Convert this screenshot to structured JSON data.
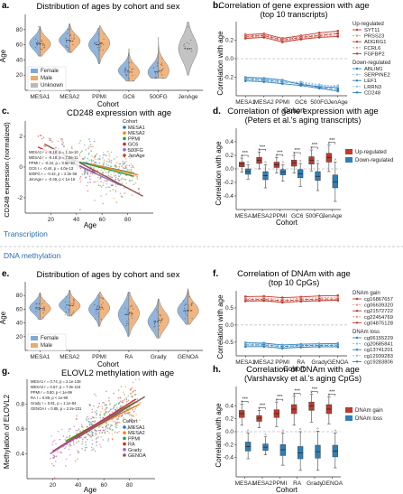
{
  "colors": {
    "female": "#7fa8d6",
    "male": "#f0a868",
    "unknown": "#b8b8b8",
    "up_solid": "#c0392b",
    "up_light": "#e8928a",
    "down_solid": "#2e7fb8",
    "down_light": "#8fc0e3",
    "mesa1": "#1f77b4",
    "mesa2": "#ff7f0e",
    "ppmi": "#2ca02c",
    "gc6": "#d62728",
    "fg500": "#9467bd",
    "jenage": "#8c564b",
    "ra": "#d62728",
    "grady": "#9467bd",
    "genoa": "#8c564b",
    "section_text": "#2a6db5",
    "axis": "#333333",
    "grid": "#999999"
  },
  "sections": {
    "transcription": "Transcription",
    "dna_methylation": "DNA methylation"
  },
  "chart_data": [
    {
      "id": "a",
      "panel_label": "a.",
      "type": "violin",
      "title": "Distribution of ages by cohort and sex",
      "xlabel": "Cohort",
      "ylabel": "Age",
      "ylim": [
        0,
        100
      ],
      "yticks": [
        20,
        40,
        60,
        80
      ],
      "categories": [
        "MESA1",
        "MESA2",
        "PPMI",
        "GC6",
        "500FG",
        "JenAge"
      ],
      "legend": [
        "Female",
        "Male",
        "Unknown"
      ],
      "legend_position": "bottom-left",
      "groups": [
        {
          "cohort": "MESA1",
          "female": {
            "median": 62,
            "min": 45,
            "max": 84
          },
          "male": {
            "median": 61,
            "min": 45,
            "max": 84
          }
        },
        {
          "cohort": "MESA2",
          "female": {
            "median": 66,
            "min": 50,
            "max": 88
          },
          "male": {
            "median": 65,
            "min": 50,
            "max": 88
          }
        },
        {
          "cohort": "PPMI",
          "female": {
            "median": 60,
            "min": 35,
            "max": 82
          },
          "male": {
            "median": 62,
            "min": 35,
            "max": 85
          }
        },
        {
          "cohort": "GC6",
          "female": {
            "median": 26,
            "min": 12,
            "max": 50
          },
          "male": {
            "median": 24,
            "min": 12,
            "max": 55
          }
        },
        {
          "cohort": "500FG",
          "female": {
            "median": 24,
            "min": 16,
            "max": 60
          },
          "male": {
            "median": 26,
            "min": 16,
            "max": 70
          }
        },
        {
          "cohort": "JenAge",
          "unknown": {
            "median": 55,
            "min": 20,
            "max": 90
          }
        }
      ]
    },
    {
      "id": "b",
      "panel_label": "b.",
      "type": "line",
      "title": "Correlation of gene expression with age",
      "subtitle": "(top 10 transcripts)",
      "xlabel": "Cohort",
      "ylabel": "Correlation with age",
      "ylim": [
        -0.4,
        0.4
      ],
      "yticks": [
        -0.2,
        0.0,
        0.2
      ],
      "ytick_labels": [
        "-0.2",
        "0.0",
        "0.2"
      ],
      "categories": [
        "MESA1",
        "MESA2",
        "PPMI",
        "GC6",
        "500FG",
        "JenAge"
      ],
      "legend_groups": [
        {
          "title": "Up-regulated",
          "items": [
            "SYT11",
            "PRSS23",
            "ADGRG1",
            "FCRL6",
            "FGFBP2"
          ]
        },
        {
          "title": "Down-regulated",
          "items": [
            "ABLIM1",
            "SERPINE2",
            "LEF1",
            "LRRN3",
            "CD248"
          ]
        }
      ],
      "series": [
        {
          "name": "SYT11",
          "group": "up",
          "values": [
            0.26,
            0.27,
            0.22,
            0.25,
            0.28,
            0.3
          ]
        },
        {
          "name": "PRSS23",
          "group": "up",
          "values": [
            0.25,
            0.26,
            0.21,
            0.24,
            0.26,
            0.28
          ]
        },
        {
          "name": "ADGRG1",
          "group": "up",
          "values": [
            0.24,
            0.25,
            0.2,
            0.23,
            0.25,
            0.27
          ]
        },
        {
          "name": "FCRL6",
          "group": "up",
          "values": [
            0.23,
            0.24,
            0.19,
            0.22,
            0.24,
            0.25
          ]
        },
        {
          "name": "FGFBP2",
          "group": "up",
          "values": [
            0.22,
            0.23,
            0.18,
            0.21,
            0.23,
            0.24
          ]
        },
        {
          "name": "ABLIM1",
          "group": "down",
          "values": [
            -0.2,
            -0.21,
            -0.23,
            -0.28,
            -0.3,
            -0.31
          ]
        },
        {
          "name": "SERPINE2",
          "group": "down",
          "values": [
            -0.21,
            -0.22,
            -0.24,
            -0.26,
            -0.29,
            -0.29
          ]
        },
        {
          "name": "LEF1",
          "group": "down",
          "values": [
            -0.22,
            -0.23,
            -0.25,
            -0.27,
            -0.31,
            -0.33
          ]
        },
        {
          "name": "LRRN3",
          "group": "down",
          "values": [
            -0.23,
            -0.24,
            -0.26,
            -0.25,
            -0.28,
            -0.3
          ]
        },
        {
          "name": "CD248",
          "group": "down",
          "values": [
            -0.24,
            -0.25,
            -0.27,
            -0.29,
            -0.32,
            -0.35
          ]
        }
      ]
    },
    {
      "id": "c",
      "panel_label": "c.",
      "type": "scatter",
      "title": "CD248 expression with age",
      "xlabel": "Age",
      "ylabel": "CD248 expression (normalized)",
      "xlim": [
        0,
        100
      ],
      "ylim": [
        -3,
        3
      ],
      "xticks": [
        20,
        40,
        60,
        80
      ],
      "yticks": [
        -2,
        0,
        2
      ],
      "legend_title": "Cohort",
      "legend": [
        "MESA1",
        "MESA2",
        "PPMI",
        "GC6",
        "500FG",
        "JenAge"
      ],
      "stats": [
        "MESA1 r = -0.18, p = 1.1e-10",
        "MESA2 r = -0.18, p = 7.0e-11",
        "PPMI r = -0.24, p = 3.5e-10",
        "GC6 r = -0.44, p = 4.0e-13",
        "500FG r = -0.42, p = 2.2e-08",
        "JenAge r = -0.48, p < 1e-16"
      ],
      "trend_lines": [
        {
          "cohort": "MESA1",
          "x": [
            45,
            85
          ],
          "y": [
            0.3,
            -0.4
          ]
        },
        {
          "cohort": "MESA2",
          "x": [
            50,
            88
          ],
          "y": [
            0.2,
            -0.5
          ]
        },
        {
          "cohort": "PPMI",
          "x": [
            30,
            85
          ],
          "y": [
            0.6,
            -0.6
          ]
        },
        {
          "cohort": "GC6",
          "x": [
            10,
            55
          ],
          "y": [
            1.3,
            -0.4
          ]
        },
        {
          "cohort": "500FG",
          "x": [
            18,
            75
          ],
          "y": [
            1.0,
            -1.2
          ]
        },
        {
          "cohort": "JenAge",
          "x": [
            15,
            92
          ],
          "y": [
            1.5,
            -1.9
          ]
        }
      ]
    },
    {
      "id": "d",
      "panel_label": "d.",
      "type": "box",
      "title": "Correlation of gene expression with age",
      "subtitle": "(Peters et al.'s aging transcripts)",
      "xlabel": "Cohort",
      "ylabel": "Correlation with age",
      "ylim": [
        -0.6,
        0.6
      ],
      "yticks": [
        -0.4,
        -0.2,
        0.0,
        0.2,
        0.4
      ],
      "ytick_labels": [
        "-0.4",
        "-0.2",
        "0.0",
        "0.2",
        "0.4"
      ],
      "categories": [
        "MESA1",
        "MESA2",
        "PPMI",
        "GC6",
        "500FG",
        "JenAge"
      ],
      "legend": [
        "Up-regulated",
        "Down-regulated"
      ],
      "significance": "***",
      "up": [
        {
          "q1": 0.03,
          "median": 0.07,
          "q3": 0.1,
          "low": -0.05,
          "high": 0.16
        },
        {
          "q1": 0.08,
          "median": 0.13,
          "q3": 0.17,
          "low": 0.0,
          "high": 0.25
        },
        {
          "q1": 0.02,
          "median": 0.06,
          "q3": 0.1,
          "low": -0.06,
          "high": 0.17
        },
        {
          "q1": 0.04,
          "median": 0.09,
          "q3": 0.13,
          "low": -0.06,
          "high": 0.2
        },
        {
          "q1": 0.07,
          "median": 0.13,
          "q3": 0.18,
          "low": -0.03,
          "high": 0.28
        },
        {
          "q1": 0.1,
          "median": 0.17,
          "q3": 0.23,
          "low": -0.04,
          "high": 0.35
        }
      ],
      "down": [
        {
          "q1": -0.08,
          "median": -0.04,
          "q3": 0.0,
          "low": -0.15,
          "high": 0.06
        },
        {
          "q1": -0.16,
          "median": -0.1,
          "q3": -0.04,
          "low": -0.28,
          "high": 0.06
        },
        {
          "q1": -0.09,
          "median": -0.05,
          "q3": -0.01,
          "low": -0.18,
          "high": 0.06
        },
        {
          "q1": -0.13,
          "median": -0.07,
          "q3": -0.01,
          "low": -0.26,
          "high": 0.08
        },
        {
          "q1": -0.17,
          "median": -0.11,
          "q3": -0.04,
          "low": -0.32,
          "high": 0.08
        },
        {
          "q1": -0.28,
          "median": -0.19,
          "q3": -0.09,
          "low": -0.48,
          "high": 0.1
        }
      ]
    },
    {
      "id": "e",
      "panel_label": "e.",
      "type": "violin",
      "title": "Distribution of ages by cohort and sex",
      "xlabel": "Cohort",
      "ylabel": "Age",
      "ylim": [
        0,
        100
      ],
      "yticks": [
        20,
        40,
        60,
        80
      ],
      "categories": [
        "MESA1",
        "MESA2",
        "PPMI",
        "RA",
        "Grady",
        "GENOA"
      ],
      "legend": [
        "Female",
        "Male"
      ],
      "legend_position": "bottom-left",
      "groups": [
        {
          "cohort": "MESA1",
          "female": {
            "median": 62,
            "min": 45,
            "max": 84
          },
          "male": {
            "median": 61,
            "min": 45,
            "max": 84
          }
        },
        {
          "cohort": "MESA2",
          "female": {
            "median": 66,
            "min": 50,
            "max": 88
          },
          "male": {
            "median": 65,
            "min": 50,
            "max": 88
          }
        },
        {
          "cohort": "PPMI",
          "female": {
            "median": 60,
            "min": 35,
            "max": 82
          },
          "male": {
            "median": 62,
            "min": 35,
            "max": 85
          }
        },
        {
          "cohort": "RA",
          "female": {
            "median": 52,
            "min": 20,
            "max": 85
          },
          "male": {
            "median": 54,
            "min": 22,
            "max": 85
          }
        },
        {
          "cohort": "Grady",
          "female": {
            "median": 42,
            "min": 18,
            "max": 75
          },
          "male": {
            "median": 44,
            "min": 18,
            "max": 75
          }
        },
        {
          "cohort": "GENOA",
          "female": {
            "median": 58,
            "min": 38,
            "max": 90
          },
          "male": {
            "median": 58,
            "min": 38,
            "max": 88
          }
        }
      ]
    },
    {
      "id": "f",
      "panel_label": "f.",
      "type": "line",
      "title": "Correlation of DNAm with age",
      "subtitle": "(top 10 CpGs)",
      "xlabel": "Cohort",
      "ylabel": "Correlation with age",
      "ylim": [
        -0.9,
        1.0
      ],
      "yticks": [
        -0.5,
        0.0,
        0.5
      ],
      "ytick_labels": [
        "-0.5",
        "0.0",
        "0.5"
      ],
      "categories": [
        "MESA1",
        "MESA2",
        "PPMI",
        "RA",
        "Grady",
        "GENOA"
      ],
      "legend_groups": [
        {
          "title": "DNAm gain",
          "items": [
            "cg16867657",
            "cg06639320",
            "cg21572722",
            "cg22454769",
            "cg04875128"
          ]
        },
        {
          "title": "DNAm loss",
          "items": [
            "cg06155229",
            "cg20685841",
            "cg13741201",
            "cg12939283",
            "cg19283806"
          ]
        }
      ],
      "series": [
        {
          "name": "cg16867657",
          "group": "up",
          "values": [
            0.83,
            0.84,
            0.8,
            0.82,
            0.85,
            0.86
          ]
        },
        {
          "name": "cg06639320",
          "group": "up",
          "values": [
            0.78,
            0.79,
            0.75,
            0.78,
            0.8,
            0.81
          ]
        },
        {
          "name": "cg21572722",
          "group": "up",
          "values": [
            0.74,
            0.75,
            0.71,
            0.74,
            0.76,
            0.76
          ]
        },
        {
          "name": "cg22454769",
          "group": "up",
          "values": [
            0.72,
            0.73,
            0.68,
            0.71,
            0.73,
            0.74
          ]
        },
        {
          "name": "cg04875128",
          "group": "up",
          "values": [
            0.7,
            0.71,
            0.66,
            0.69,
            0.71,
            0.72
          ]
        },
        {
          "name": "cg06155229",
          "group": "down",
          "values": [
            -0.52,
            -0.53,
            -0.58,
            -0.56,
            -0.55,
            -0.54
          ]
        },
        {
          "name": "cg20685841",
          "group": "down",
          "values": [
            -0.55,
            -0.56,
            -0.6,
            -0.58,
            -0.57,
            -0.57
          ]
        },
        {
          "name": "cg13741201",
          "group": "down",
          "values": [
            -0.58,
            -0.58,
            -0.63,
            -0.6,
            -0.6,
            -0.59
          ]
        },
        {
          "name": "cg12939283",
          "group": "down",
          "values": [
            -0.6,
            -0.61,
            -0.66,
            -0.62,
            -0.62,
            -0.62
          ]
        },
        {
          "name": "cg19283806",
          "group": "down",
          "values": [
            -0.63,
            -0.63,
            -0.68,
            -0.65,
            -0.64,
            -0.64
          ]
        }
      ]
    },
    {
      "id": "g",
      "panel_label": "g.",
      "type": "scatter",
      "title": "ELOVL2 methylation with age",
      "xlabel": "Age",
      "ylabel": "Methylation of ELOVL2",
      "xlim": [
        0,
        100
      ],
      "ylim": [
        0.2,
        1.0
      ],
      "xticks": [
        20,
        40,
        60,
        80
      ],
      "yticks": [
        0.4,
        0.6,
        0.8
      ],
      "legend_title": "Cohort",
      "legend": [
        "MESA1",
        "MESA2",
        "PPMI",
        "RA",
        "Grady",
        "GENOA"
      ],
      "stats": [
        "MESA1 r = 0.74, p = 2.1e-138",
        "MESA2 r = 0.67, p = 7.0e-116",
        "PPMI r = 0.80, p < 1e-99",
        "RA r = 0.88, p < 1e-99",
        "Grady r = 0.81, p = 1.1e-84",
        "GENOA r = 0.85, p = 2.2e-231"
      ],
      "trend_lines": [
        {
          "cohort": "MESA1",
          "x": [
            45,
            84
          ],
          "y": [
            0.58,
            0.78
          ]
        },
        {
          "cohort": "MESA2",
          "x": [
            50,
            88
          ],
          "y": [
            0.6,
            0.8
          ]
        },
        {
          "cohort": "PPMI",
          "x": [
            30,
            85
          ],
          "y": [
            0.5,
            0.82
          ]
        },
        {
          "cohort": "RA",
          "x": [
            20,
            85
          ],
          "y": [
            0.42,
            0.84
          ]
        },
        {
          "cohort": "Grady",
          "x": [
            18,
            75
          ],
          "y": [
            0.4,
            0.76
          ]
        },
        {
          "cohort": "GENOA",
          "x": [
            38,
            92
          ],
          "y": [
            0.52,
            0.86
          ]
        }
      ]
    },
    {
      "id": "h",
      "panel_label": "h.",
      "type": "box",
      "title": "Correlation of DNAm with age",
      "subtitle": "(Varshavsky et al.'s aging CpGs)",
      "xlabel": "Cohort",
      "ylabel": "Correlation with age",
      "ylim": [
        -0.7,
        0.7
      ],
      "yticks": [
        -0.4,
        -0.2,
        0.0,
        0.2,
        0.4
      ],
      "ytick_labels": [
        "-0.4",
        "-0.2",
        "0.0",
        "0.2",
        "0.4"
      ],
      "categories": [
        "MESA1",
        "MESA2",
        "PPMI",
        "RA",
        "Grady",
        "GENOA"
      ],
      "legend": [
        "DNAm gain",
        "DNAm loss"
      ],
      "significance": "***",
      "up": [
        {
          "q1": 0.22,
          "median": 0.28,
          "q3": 0.33,
          "low": 0.1,
          "high": 0.43
        },
        {
          "q1": 0.16,
          "median": 0.21,
          "q3": 0.25,
          "low": 0.06,
          "high": 0.33
        },
        {
          "q1": 0.22,
          "median": 0.28,
          "q3": 0.34,
          "low": 0.08,
          "high": 0.46
        },
        {
          "q1": 0.28,
          "median": 0.35,
          "q3": 0.42,
          "low": 0.1,
          "high": 0.55
        },
        {
          "q1": 0.33,
          "median": 0.4,
          "q3": 0.46,
          "low": 0.15,
          "high": 0.58
        },
        {
          "q1": 0.28,
          "median": 0.35,
          "q3": 0.42,
          "low": 0.12,
          "high": 0.54
        }
      ],
      "down": [
        {
          "q1": -0.3,
          "median": -0.23,
          "q3": -0.16,
          "low": -0.42,
          "high": -0.02
        },
        {
          "q1": -0.29,
          "median": -0.24,
          "q3": -0.19,
          "low": -0.36,
          "high": -0.08
        },
        {
          "q1": -0.37,
          "median": -0.28,
          "q3": -0.2,
          "low": -0.52,
          "high": -0.02
        },
        {
          "q1": -0.42,
          "median": -0.33,
          "q3": -0.23,
          "low": -0.6,
          "high": 0.0
        },
        {
          "q1": -0.41,
          "median": -0.31,
          "q3": -0.21,
          "low": -0.6,
          "high": 0.01
        },
        {
          "q1": -0.39,
          "median": -0.3,
          "q3": -0.21,
          "low": -0.56,
          "high": -0.02
        }
      ]
    }
  ]
}
